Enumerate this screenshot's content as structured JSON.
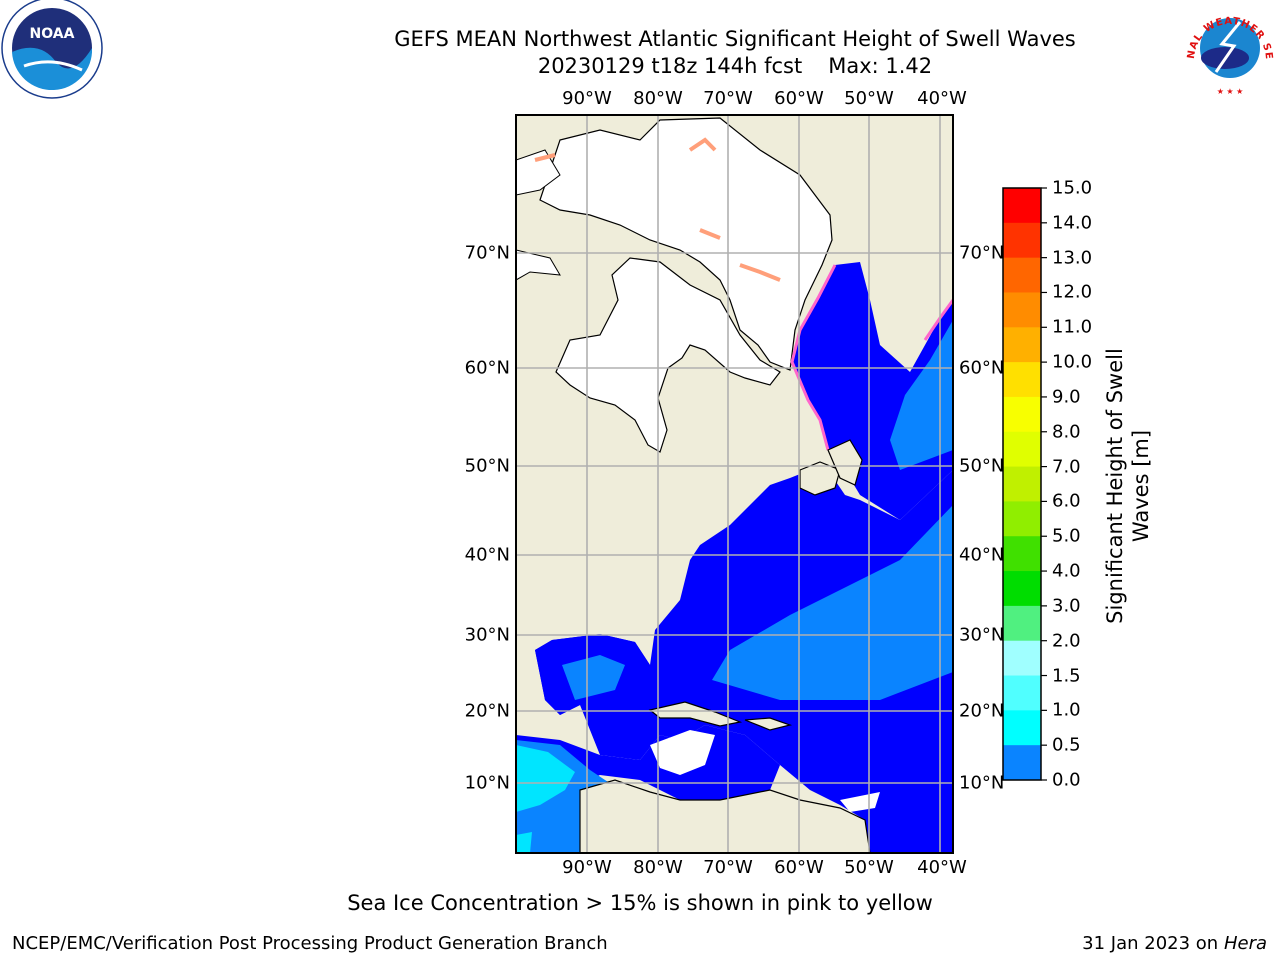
{
  "header": {
    "title": "GEFS MEAN Northwest Atlantic Significant Height of Swell Waves",
    "run": "20230129 t18z 144h fcst",
    "max": "Max: 1.42"
  },
  "map": {
    "lon_labels": [
      "90°W",
      "80°W",
      "70°W",
      "60°W",
      "50°W",
      "40°W"
    ],
    "lat_labels": [
      "70°N",
      "60°N",
      "50°N",
      "40°N",
      "30°N",
      "20°N",
      "10°N"
    ],
    "colors": {
      "land": "#efedda",
      "ice": "#ffffff",
      "ocean_low": "#0000ff",
      "ocean_mid": "#0a84ff",
      "ocean_high": "#00e5ff",
      "grid": "#b0b0b0"
    }
  },
  "colorbar": {
    "title": "Significant Height of Swell Waves [m]",
    "ticks": [
      "15.0",
      "14.0",
      "13.0",
      "12.0",
      "11.0",
      "10.0",
      "9.0",
      "8.0",
      "7.0",
      "6.0",
      "5.0",
      "4.0",
      "3.0",
      "2.0",
      "1.5",
      "1.0",
      "0.5",
      "0.0"
    ],
    "colors": [
      "#ff0000",
      "#ff3300",
      "#ff6600",
      "#ff8c00",
      "#ffb000",
      "#ffe000",
      "#f8ff00",
      "#e0ff00",
      "#c0f000",
      "#90ee00",
      "#40e000",
      "#00dd00",
      "#50f080",
      "#a0ffff",
      "#50ffff",
      "#00ffff",
      "#0a84ff",
      "#0000ff"
    ]
  },
  "logos": {
    "left": "NOAA",
    "right": "NATIONAL WEATHER SERVICE"
  },
  "note": "Sea Ice Concentration > 15% is shown in pink to yellow",
  "footer": {
    "left": "NCEP/EMC/Verification Post Processing Product Generation Branch",
    "date": "31 Jan 2023 on",
    "system": "Hera"
  }
}
